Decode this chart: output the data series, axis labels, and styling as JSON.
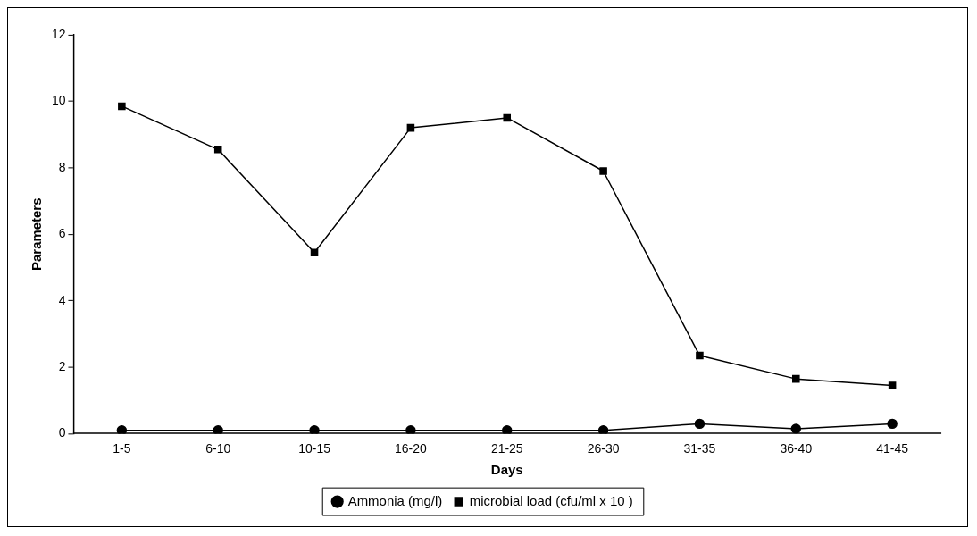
{
  "chart_data": {
    "type": "line",
    "xlabel": "Days",
    "ylabel": "Parameters",
    "categories": [
      "1-5",
      "6-10",
      "10-15",
      "16-20",
      "21-25",
      "26-30",
      "31-35",
      "36-40",
      "41-45"
    ],
    "series": [
      {
        "name": "Ammonia (mg/l)",
        "color": "#000000",
        "marker": "circle",
        "values": [
          0.1,
          0.1,
          0.1,
          0.1,
          0.1,
          0.1,
          0.3,
          0.15,
          0.3
        ]
      },
      {
        "name": "microbial load (cfu/ml x 10 )",
        "color": "#000000",
        "marker": "square",
        "values": [
          9.85,
          8.55,
          5.45,
          9.2,
          9.5,
          7.9,
          2.35,
          1.65,
          1.45
        ]
      }
    ],
    "ylim": [
      0,
      12
    ],
    "yticks": [
      0,
      2,
      4,
      6,
      8,
      10,
      12
    ],
    "grid": false,
    "legend": "bottom",
    "line_style": "solid"
  }
}
